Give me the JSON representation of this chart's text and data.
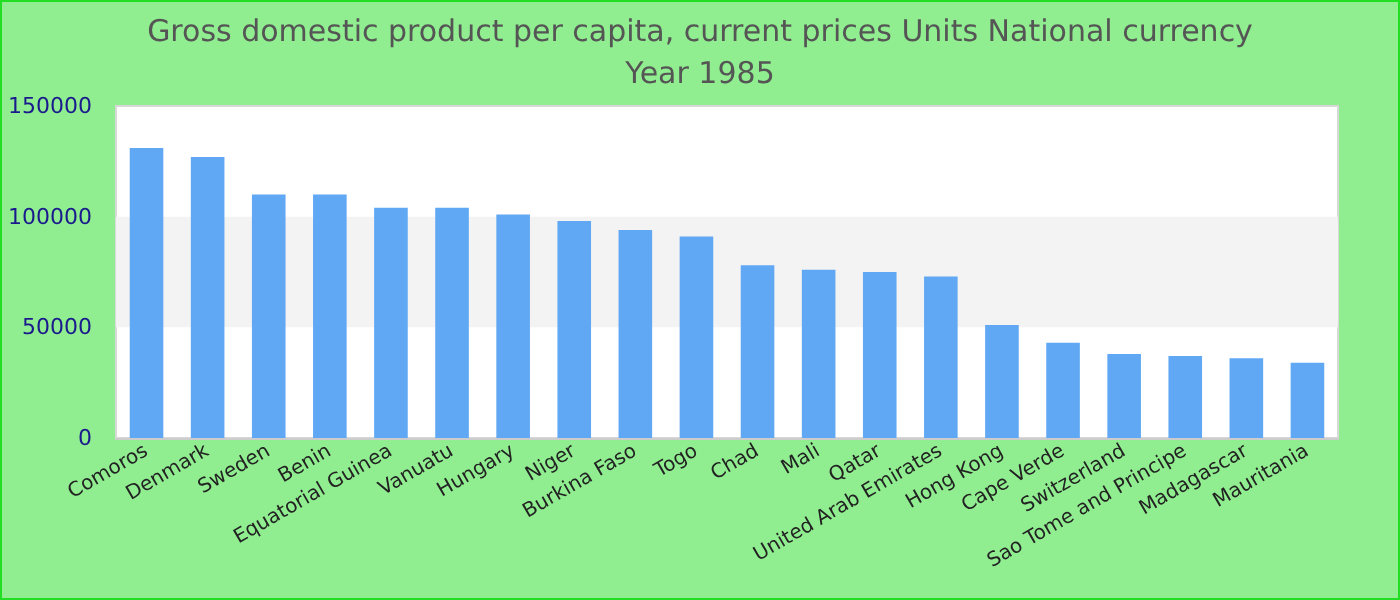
{
  "chart_data": {
    "type": "bar",
    "title": "Gross domestic product per capita, current prices Units National currency",
    "subtitle": "Year 1985",
    "categories": [
      "Comoros",
      "Denmark",
      "Sweden",
      "Benin",
      "Equatorial Guinea",
      "Vanuatu",
      "Hungary",
      "Niger",
      "Burkina Faso",
      "Togo",
      "Chad",
      "Mali",
      "Qatar",
      "United Arab Emirates",
      "Hong Kong",
      "Cape Verde",
      "Switzerland",
      "Sao Tome and Principe",
      "Madagascar",
      "Mauritania"
    ],
    "values": [
      131000,
      127000,
      110000,
      110000,
      104000,
      104000,
      101000,
      98000,
      94000,
      91000,
      78000,
      76000,
      75000,
      73000,
      51000,
      43000,
      38000,
      37000,
      36000,
      34000
    ],
    "color": "#60a8f4",
    "ylim": [
      0,
      150000
    ],
    "yticks": [
      0,
      50000,
      100000,
      150000
    ],
    "bands": [
      {
        "axis": "y",
        "from": 50000,
        "to": 100000,
        "color": "#f3f3f3"
      }
    ]
  }
}
